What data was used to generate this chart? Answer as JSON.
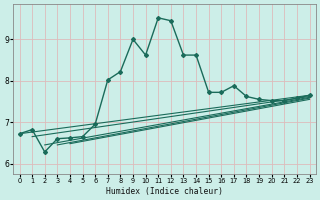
{
  "xlabel": "Humidex (Indice chaleur)",
  "bg_color": "#cceee8",
  "grid_color": "#ddbbbb",
  "line_color": "#1a6b5a",
  "xlim": [
    -0.5,
    23.5
  ],
  "ylim": [
    5.75,
    9.85
  ],
  "xticks": [
    0,
    1,
    2,
    3,
    4,
    5,
    6,
    7,
    8,
    9,
    10,
    11,
    12,
    13,
    14,
    15,
    16,
    17,
    18,
    19,
    20,
    21,
    22,
    23
  ],
  "yticks": [
    6,
    7,
    8,
    9
  ],
  "main_line": {
    "x": [
      0,
      1,
      2,
      3,
      4,
      5,
      6,
      7,
      8,
      9,
      10,
      11,
      12,
      13,
      14,
      15,
      16,
      17,
      18,
      19,
      20,
      21,
      22,
      23
    ],
    "y": [
      6.72,
      6.82,
      6.28,
      6.6,
      6.62,
      6.65,
      6.95,
      8.02,
      8.22,
      9.0,
      8.62,
      9.52,
      9.45,
      8.62,
      8.62,
      7.72,
      7.72,
      7.88,
      7.62,
      7.55,
      7.52,
      7.52,
      7.58,
      7.65
    ],
    "marker": "D",
    "markersize": 2.0,
    "linewidth": 1.0
  },
  "trend_lines": [
    {
      "x": [
        0,
        23
      ],
      "y": [
        6.72,
        7.65
      ],
      "linewidth": 0.8
    },
    {
      "x": [
        1,
        23
      ],
      "y": [
        6.65,
        7.62
      ],
      "linewidth": 0.8
    },
    {
      "x": [
        2,
        23
      ],
      "y": [
        6.45,
        7.6
      ],
      "linewidth": 0.8
    },
    {
      "x": [
        3,
        23
      ],
      "y": [
        6.45,
        7.58
      ],
      "linewidth": 0.8
    },
    {
      "x": [
        4,
        23
      ],
      "y": [
        6.48,
        7.55
      ],
      "linewidth": 0.8
    }
  ]
}
